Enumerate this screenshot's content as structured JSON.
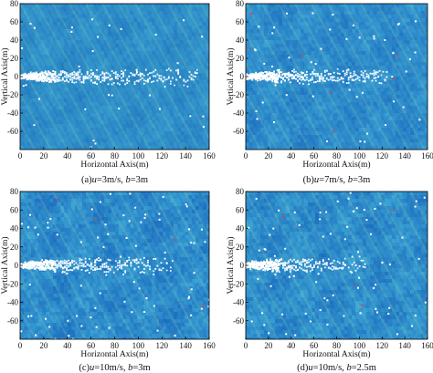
{
  "chart_data": [
    {
      "type": "heatmap",
      "caption": "(a)u=3m/s, b=3m",
      "caption_parts": [
        {
          "text": "(a)",
          "italic": false
        },
        {
          "text": "u",
          "italic": true
        },
        {
          "text": "=3m/s, ",
          "italic": false
        },
        {
          "text": "b",
          "italic": true
        },
        {
          "text": "=3m",
          "italic": false
        }
      ],
      "xlabel": "Horizontal Axis(m)",
      "ylabel": "Vertical Axis(m)",
      "xlim": [
        0,
        160
      ],
      "ylim": [
        -80,
        80
      ],
      "xticks": [
        0,
        20,
        40,
        60,
        80,
        100,
        120,
        140,
        160
      ],
      "yticks": [
        80,
        60,
        40,
        20,
        0,
        -20,
        -40,
        -60
      ],
      "u": 3,
      "b": 3,
      "wake_length": 150,
      "noise_level": 0.25,
      "background_color": "#2f8fc9"
    },
    {
      "type": "heatmap",
      "caption": "(b)u=7m/s, b=3m",
      "caption_parts": [
        {
          "text": "(b)",
          "italic": false
        },
        {
          "text": "u",
          "italic": true
        },
        {
          "text": "=7m/s, ",
          "italic": false
        },
        {
          "text": "b",
          "italic": true
        },
        {
          "text": "=3m",
          "italic": false
        }
      ],
      "xlabel": "Horizontal Axis(m)",
      "ylabel": "Vertical Axis(m)",
      "xlim": [
        0,
        160
      ],
      "ylim": [
        -80,
        80
      ],
      "xticks": [
        0,
        20,
        40,
        60,
        80,
        100,
        120,
        140,
        160
      ],
      "yticks": [
        80,
        60,
        40,
        20,
        0,
        -20,
        -40,
        -60
      ],
      "u": 7,
      "b": 3,
      "wake_length": 125,
      "noise_level": 0.6,
      "background_color": "#2e8ccb"
    },
    {
      "type": "heatmap",
      "caption": "(c)u=10m/s, b=3m",
      "caption_parts": [
        {
          "text": "(c)",
          "italic": false
        },
        {
          "text": "u",
          "italic": true
        },
        {
          "text": "=10m/s, ",
          "italic": false
        },
        {
          "text": "b",
          "italic": true
        },
        {
          "text": "=3m",
          "italic": false
        }
      ],
      "xlabel": "Horizontal Axis(m)",
      "ylabel": "Vertical Axis(m)",
      "xlim": [
        0,
        160
      ],
      "ylim": [
        -80,
        80
      ],
      "xticks": [
        0,
        20,
        40,
        60,
        80,
        100,
        120,
        140,
        160
      ],
      "yticks": [
        80,
        60,
        40,
        20,
        0,
        -20,
        -40,
        -60
      ],
      "u": 10,
      "b": 3,
      "wake_length": 130,
      "noise_level": 0.9,
      "background_color": "#2d8bcb"
    },
    {
      "type": "heatmap",
      "caption": "(d)u=10m/s, b=2.5m",
      "caption_parts": [
        {
          "text": "(d)",
          "italic": false
        },
        {
          "text": "u",
          "italic": true
        },
        {
          "text": "=10m/s, ",
          "italic": false
        },
        {
          "text": "b",
          "italic": true
        },
        {
          "text": "=2.5m",
          "italic": false
        }
      ],
      "xlabel": "Horizontal Axis(m)",
      "ylabel": "Vertical Axis(m)",
      "xlim": [
        0,
        160
      ],
      "ylim": [
        -80,
        80
      ],
      "xticks": [
        0,
        20,
        40,
        60,
        80,
        100,
        120,
        140,
        160
      ],
      "yticks": [
        80,
        60,
        40,
        20,
        0,
        -20,
        -40,
        -60
      ],
      "u": 10,
      "b": 2.5,
      "wake_length": 105,
      "noise_level": 0.85,
      "background_color": "#2e8dcb"
    }
  ]
}
